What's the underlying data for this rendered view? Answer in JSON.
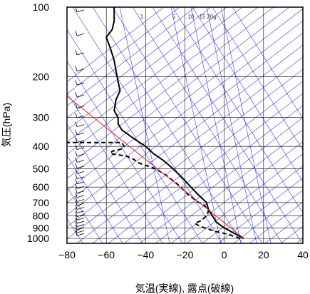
{
  "chart_data": {
    "type": "line",
    "xlabel": "気温(実線), 露点(破線)",
    "ylabel": "気圧(hPa)",
    "xlim": [
      -80,
      40
    ],
    "ylim": [
      1050,
      100
    ],
    "y_scale": "log",
    "x_ticks": [
      "−80",
      "−60",
      "−40",
      "−20",
      "0",
      "20",
      "40"
    ],
    "y_ticks": [
      "100",
      "200",
      "300",
      "400",
      "500",
      "600",
      "700",
      "800",
      "900",
      "1000"
    ],
    "mixing_ratio_labels": [
      "1",
      "5",
      "10",
      "15",
      "20g"
    ],
    "colors": {
      "isotherm_skewed": "#3b3bdc",
      "parcel": "#dd2222",
      "profile": "#000000",
      "grid": "#000000"
    },
    "series": [
      {
        "style": "solid",
        "points": [
          [
            10,
            1000
          ],
          [
            5,
            950
          ],
          [
            0,
            900
          ],
          [
            -4,
            850
          ],
          [
            -6,
            800
          ],
          [
            -8,
            750
          ],
          [
            -9,
            700
          ],
          [
            -13,
            650
          ],
          [
            -17,
            600
          ],
          [
            -21,
            550
          ],
          [
            -26,
            500
          ],
          [
            -31,
            460
          ],
          [
            -36,
            430
          ],
          [
            -40,
            400
          ],
          [
            -46,
            370
          ],
          [
            -52,
            340
          ],
          [
            -54,
            320
          ],
          [
            -54,
            300
          ],
          [
            -56,
            280
          ],
          [
            -55,
            250
          ],
          [
            -53,
            230
          ],
          [
            -54,
            210
          ],
          [
            -55,
            190
          ],
          [
            -56,
            170
          ],
          [
            -58,
            150
          ],
          [
            -60,
            135
          ],
          [
            -57,
            125
          ],
          [
            -56,
            115
          ],
          [
            -56,
            105
          ],
          [
            -56,
            100
          ]
        ]
      },
      {
        "style": "dashed",
        "points": [
          [
            8,
            1000
          ],
          [
            2,
            960
          ],
          [
            -5,
            930
          ],
          [
            -10,
            900
          ],
          [
            -13,
            880
          ],
          [
            -15,
            860
          ],
          [
            -12,
            840
          ],
          [
            -9,
            800
          ],
          [
            -8,
            760
          ],
          [
            -10,
            720
          ],
          [
            -14,
            690
          ],
          [
            -18,
            650
          ],
          [
            -24,
            580
          ],
          [
            -30,
            530
          ],
          [
            -35,
            500
          ],
          [
            -38,
            490
          ],
          [
            -44,
            470
          ],
          [
            -46,
            455
          ],
          [
            -50,
            440
          ],
          [
            -54,
            435
          ],
          [
            -58,
            430
          ],
          [
            -57,
            420
          ],
          [
            -52,
            410
          ],
          [
            -51,
            400
          ],
          [
            -52,
            385
          ],
          [
            -80,
            385
          ]
        ]
      },
      {
        "style": "parcel",
        "points": [
          [
            10,
            1000
          ],
          [
            -82,
            235
          ]
        ]
      }
    ]
  }
}
